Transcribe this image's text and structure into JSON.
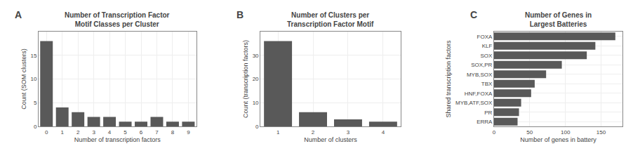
{
  "chart_data": [
    {
      "type": "bar",
      "title": "Number of Transcription Factor\nMotif Classes per Cluster",
      "xlabel": "Number of transcription factors",
      "ylabel": "Count (SOM clusters)",
      "x": [
        0,
        1,
        2,
        3,
        4,
        5,
        6,
        7,
        8,
        9
      ],
      "values": [
        18,
        4,
        3,
        2,
        2,
        1,
        1,
        2,
        1,
        1
      ],
      "xlim": [
        -0.5,
        9.5
      ],
      "xticks": [
        0,
        1,
        2,
        3,
        4,
        5,
        6,
        7,
        8,
        9
      ],
      "ylim": [
        0,
        20
      ],
      "yticks": [
        0,
        5,
        10,
        15
      ],
      "grid": true,
      "color": "#595959",
      "annotations": [
        {
          "text": "A"
        }
      ]
    },
    {
      "type": "bar",
      "title": "Number of Clusters per\nTranscription Factor Motif",
      "xlabel": "Number of clusters",
      "ylabel": "Count (transcription factors)",
      "x": [
        1,
        2,
        3,
        4
      ],
      "values": [
        36,
        6,
        3,
        2
      ],
      "xlim": [
        0.5,
        4.5
      ],
      "xticks": [
        1,
        2,
        3,
        4
      ],
      "ylim": [
        0,
        40
      ],
      "yticks": [
        0,
        10,
        20,
        30
      ],
      "grid": true,
      "color": "#595959",
      "annotations": [
        {
          "text": "B"
        }
      ]
    },
    {
      "type": "bar",
      "orientation": "horizontal",
      "title": "Number of Genes in\nLargest Batteries",
      "xlabel": "Number of genes in battery",
      "ylabel": "Shared transcription factors",
      "categories": [
        "FOXA",
        "KLF",
        "SOX",
        "SOX,PR",
        "MYB,SOX",
        "TBX",
        "HNF,FOXA",
        "MYB,ATF,SOX",
        "PR",
        "ERRA"
      ],
      "values": [
        170,
        142,
        130,
        95,
        73,
        57,
        52,
        38,
        35,
        33
      ],
      "xlim": [
        0,
        180
      ],
      "xticks": [
        0,
        50,
        100,
        150
      ],
      "grid": true,
      "color": "#595959",
      "annotations": [
        {
          "text": "C"
        }
      ]
    }
  ]
}
